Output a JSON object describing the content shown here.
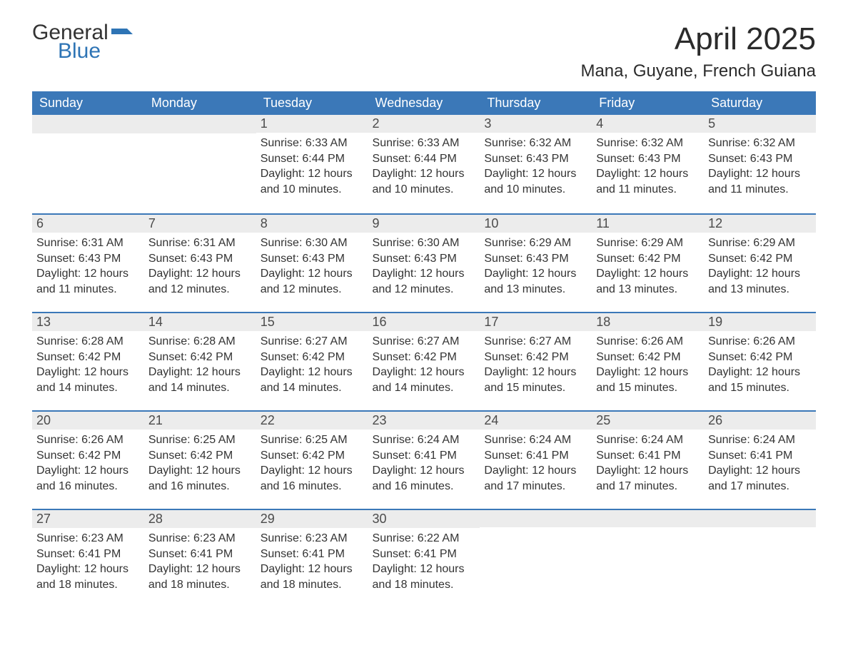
{
  "brand": {
    "word1": "General",
    "word2": "Blue",
    "flag_color": "#2e74b5"
  },
  "title": "April 2025",
  "location": "Mana, Guyane, French Guiana",
  "colors": {
    "header_bg": "#3b78b8",
    "header_text": "#ffffff",
    "datebar_bg": "#ececec",
    "datebar_border": "#3b78b8",
    "text": "#333333",
    "brand_blue": "#2e74b5"
  },
  "day_headers": [
    "Sunday",
    "Monday",
    "Tuesday",
    "Wednesday",
    "Thursday",
    "Friday",
    "Saturday"
  ],
  "labels": {
    "sunrise": "Sunrise:",
    "sunset": "Sunset:",
    "daylight": "Daylight:"
  },
  "weeks": [
    [
      null,
      null,
      {
        "date": "1",
        "sunrise": "6:33 AM",
        "sunset": "6:44 PM",
        "daylight": "12 hours and 10 minutes."
      },
      {
        "date": "2",
        "sunrise": "6:33 AM",
        "sunset": "6:44 PM",
        "daylight": "12 hours and 10 minutes."
      },
      {
        "date": "3",
        "sunrise": "6:32 AM",
        "sunset": "6:43 PM",
        "daylight": "12 hours and 10 minutes."
      },
      {
        "date": "4",
        "sunrise": "6:32 AM",
        "sunset": "6:43 PM",
        "daylight": "12 hours and 11 minutes."
      },
      {
        "date": "5",
        "sunrise": "6:32 AM",
        "sunset": "6:43 PM",
        "daylight": "12 hours and 11 minutes."
      }
    ],
    [
      {
        "date": "6",
        "sunrise": "6:31 AM",
        "sunset": "6:43 PM",
        "daylight": "12 hours and 11 minutes."
      },
      {
        "date": "7",
        "sunrise": "6:31 AM",
        "sunset": "6:43 PM",
        "daylight": "12 hours and 12 minutes."
      },
      {
        "date": "8",
        "sunrise": "6:30 AM",
        "sunset": "6:43 PM",
        "daylight": "12 hours and 12 minutes."
      },
      {
        "date": "9",
        "sunrise": "6:30 AM",
        "sunset": "6:43 PM",
        "daylight": "12 hours and 12 minutes."
      },
      {
        "date": "10",
        "sunrise": "6:29 AM",
        "sunset": "6:43 PM",
        "daylight": "12 hours and 13 minutes."
      },
      {
        "date": "11",
        "sunrise": "6:29 AM",
        "sunset": "6:42 PM",
        "daylight": "12 hours and 13 minutes."
      },
      {
        "date": "12",
        "sunrise": "6:29 AM",
        "sunset": "6:42 PM",
        "daylight": "12 hours and 13 minutes."
      }
    ],
    [
      {
        "date": "13",
        "sunrise": "6:28 AM",
        "sunset": "6:42 PM",
        "daylight": "12 hours and 14 minutes."
      },
      {
        "date": "14",
        "sunrise": "6:28 AM",
        "sunset": "6:42 PM",
        "daylight": "12 hours and 14 minutes."
      },
      {
        "date": "15",
        "sunrise": "6:27 AM",
        "sunset": "6:42 PM",
        "daylight": "12 hours and 14 minutes."
      },
      {
        "date": "16",
        "sunrise": "6:27 AM",
        "sunset": "6:42 PM",
        "daylight": "12 hours and 14 minutes."
      },
      {
        "date": "17",
        "sunrise": "6:27 AM",
        "sunset": "6:42 PM",
        "daylight": "12 hours and 15 minutes."
      },
      {
        "date": "18",
        "sunrise": "6:26 AM",
        "sunset": "6:42 PM",
        "daylight": "12 hours and 15 minutes."
      },
      {
        "date": "19",
        "sunrise": "6:26 AM",
        "sunset": "6:42 PM",
        "daylight": "12 hours and 15 minutes."
      }
    ],
    [
      {
        "date": "20",
        "sunrise": "6:26 AM",
        "sunset": "6:42 PM",
        "daylight": "12 hours and 16 minutes."
      },
      {
        "date": "21",
        "sunrise": "6:25 AM",
        "sunset": "6:42 PM",
        "daylight": "12 hours and 16 minutes."
      },
      {
        "date": "22",
        "sunrise": "6:25 AM",
        "sunset": "6:42 PM",
        "daylight": "12 hours and 16 minutes."
      },
      {
        "date": "23",
        "sunrise": "6:24 AM",
        "sunset": "6:41 PM",
        "daylight": "12 hours and 16 minutes."
      },
      {
        "date": "24",
        "sunrise": "6:24 AM",
        "sunset": "6:41 PM",
        "daylight": "12 hours and 17 minutes."
      },
      {
        "date": "25",
        "sunrise": "6:24 AM",
        "sunset": "6:41 PM",
        "daylight": "12 hours and 17 minutes."
      },
      {
        "date": "26",
        "sunrise": "6:24 AM",
        "sunset": "6:41 PM",
        "daylight": "12 hours and 17 minutes."
      }
    ],
    [
      {
        "date": "27",
        "sunrise": "6:23 AM",
        "sunset": "6:41 PM",
        "daylight": "12 hours and 18 minutes."
      },
      {
        "date": "28",
        "sunrise": "6:23 AM",
        "sunset": "6:41 PM",
        "daylight": "12 hours and 18 minutes."
      },
      {
        "date": "29",
        "sunrise": "6:23 AM",
        "sunset": "6:41 PM",
        "daylight": "12 hours and 18 minutes."
      },
      {
        "date": "30",
        "sunrise": "6:22 AM",
        "sunset": "6:41 PM",
        "daylight": "12 hours and 18 minutes."
      },
      null,
      null,
      null
    ]
  ]
}
